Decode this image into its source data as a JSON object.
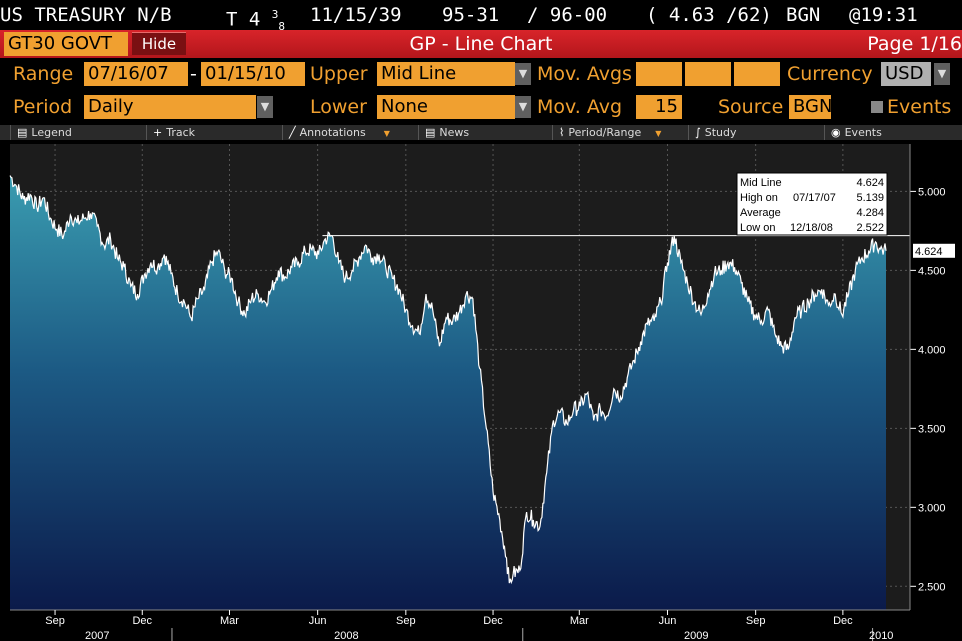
{
  "security_line": {
    "name": "US TREASURY N/B",
    "coupon": "T 4 ",
    "coupon_fraction_num": "3",
    "coupon_fraction_den": "8",
    "maturity": "11/15/39",
    "bid": "95-31",
    "ask": "/ 96-00",
    "yields": "( 4.63 /62)",
    "source": "BGN",
    "time": "@19:31"
  },
  "title_bar": {
    "ticker": "GT30 GOVT",
    "hide_label": "Hide",
    "title": "GP - Line Chart",
    "page": "Page 1/16"
  },
  "params": {
    "range_label": "Range",
    "range_start": "07/16/07",
    "range_sep": "-",
    "range_end": "01/15/10",
    "upper_label": "Upper",
    "upper_value": "Mid Line",
    "mov_avgs_label": "Mov. Avgs",
    "currency_label": "Currency",
    "currency_value": "USD",
    "period_label": "Period",
    "period_value": "Daily",
    "lower_label": "Lower",
    "lower_value": "None",
    "mov_avg_label": "Mov. Avg",
    "mov_avg_value": "15",
    "source_label": "Source",
    "source_value": "BGN",
    "events_label": "Events"
  },
  "toolbar": {
    "legend": "Legend",
    "track": "Track",
    "annotations": "Annotations",
    "news": "News",
    "period_range": "Period/Range",
    "study": "Study",
    "events": "Events"
  },
  "info_box": {
    "mid_label": "Mid Line",
    "mid_value": "4.624",
    "high_label": "High on",
    "high_date": "07/17/07",
    "high_value": "5.139",
    "avg_label": "Average",
    "avg_value": "4.284",
    "low_label": "Low on",
    "low_date": "12/18/08",
    "low_value": "2.522"
  },
  "chart_data": {
    "type": "area",
    "title": "",
    "xlabel": "",
    "ylabel": "",
    "ylim": [
      2.35,
      5.3
    ],
    "yticks": [
      2.5,
      3.0,
      3.5,
      4.0,
      4.5,
      5.0
    ],
    "ytick_labels": [
      "2.500",
      "3.000",
      "3.500",
      "4.000",
      "4.500",
      "5.000"
    ],
    "last_value_label": "4.624",
    "month_ticks": [
      {
        "date": "2007-09-01",
        "label": "Sep"
      },
      {
        "date": "2007-12-01",
        "label": "Dec"
      },
      {
        "date": "2008-03-01",
        "label": "Mar"
      },
      {
        "date": "2008-06-01",
        "label": "Jun"
      },
      {
        "date": "2008-09-01",
        "label": "Sep"
      },
      {
        "date": "2008-12-01",
        "label": "Dec"
      },
      {
        "date": "2009-03-01",
        "label": "Mar"
      },
      {
        "date": "2009-06-01",
        "label": "Jun"
      },
      {
        "date": "2009-09-01",
        "label": "Sep"
      },
      {
        "date": "2009-12-01",
        "label": "Dec"
      }
    ],
    "year_labels": [
      {
        "date": "2007-10-15",
        "label": "2007"
      },
      {
        "date": "2008-07-01",
        "label": "2008"
      },
      {
        "date": "2009-07-01",
        "label": "2009"
      },
      {
        "date": "2010-01-10",
        "label": "2010"
      }
    ],
    "x_start": "2007-07-16",
    "x_end": "2010-01-15",
    "series": [
      {
        "points": [
          [
            "2007-07-16",
            5.1
          ],
          [
            "2007-07-23",
            5.03
          ],
          [
            "2007-07-30",
            4.95
          ],
          [
            "2007-08-06",
            4.98
          ],
          [
            "2007-08-13",
            4.9
          ],
          [
            "2007-08-20",
            4.96
          ],
          [
            "2007-08-27",
            4.83
          ],
          [
            "2007-09-03",
            4.76
          ],
          [
            "2007-09-10",
            4.72
          ],
          [
            "2007-09-17",
            4.85
          ],
          [
            "2007-09-24",
            4.8
          ],
          [
            "2007-10-01",
            4.83
          ],
          [
            "2007-10-08",
            4.86
          ],
          [
            "2007-10-15",
            4.78
          ],
          [
            "2007-10-22",
            4.66
          ],
          [
            "2007-10-29",
            4.7
          ],
          [
            "2007-11-05",
            4.58
          ],
          [
            "2007-11-12",
            4.52
          ],
          [
            "2007-11-19",
            4.4
          ],
          [
            "2007-11-26",
            4.35
          ],
          [
            "2007-12-03",
            4.47
          ],
          [
            "2007-12-10",
            4.55
          ],
          [
            "2007-12-17",
            4.52
          ],
          [
            "2007-12-24",
            4.6
          ],
          [
            "2007-12-31",
            4.48
          ],
          [
            "2008-01-07",
            4.35
          ],
          [
            "2008-01-14",
            4.3
          ],
          [
            "2008-01-21",
            4.2
          ],
          [
            "2008-01-28",
            4.32
          ],
          [
            "2008-02-04",
            4.38
          ],
          [
            "2008-02-11",
            4.55
          ],
          [
            "2008-02-18",
            4.62
          ],
          [
            "2008-02-25",
            4.5
          ],
          [
            "2008-03-03",
            4.45
          ],
          [
            "2008-03-10",
            4.3
          ],
          [
            "2008-03-17",
            4.22
          ],
          [
            "2008-03-24",
            4.32
          ],
          [
            "2008-03-31",
            4.35
          ],
          [
            "2008-04-07",
            4.3
          ],
          [
            "2008-04-14",
            4.38
          ],
          [
            "2008-04-21",
            4.5
          ],
          [
            "2008-04-28",
            4.46
          ],
          [
            "2008-05-05",
            4.52
          ],
          [
            "2008-05-12",
            4.55
          ],
          [
            "2008-05-19",
            4.62
          ],
          [
            "2008-05-26",
            4.63
          ],
          [
            "2008-06-02",
            4.6
          ],
          [
            "2008-06-09",
            4.7
          ],
          [
            "2008-06-16",
            4.72
          ],
          [
            "2008-06-23",
            4.55
          ],
          [
            "2008-06-30",
            4.45
          ],
          [
            "2008-07-07",
            4.5
          ],
          [
            "2008-07-14",
            4.58
          ],
          [
            "2008-07-21",
            4.66
          ],
          [
            "2008-07-28",
            4.58
          ],
          [
            "2008-08-04",
            4.6
          ],
          [
            "2008-08-11",
            4.52
          ],
          [
            "2008-08-18",
            4.45
          ],
          [
            "2008-08-25",
            4.38
          ],
          [
            "2008-09-01",
            4.25
          ],
          [
            "2008-09-08",
            4.15
          ],
          [
            "2008-09-15",
            4.1
          ],
          [
            "2008-09-22",
            4.35
          ],
          [
            "2008-09-29",
            4.25
          ],
          [
            "2008-10-06",
            4.02
          ],
          [
            "2008-10-13",
            4.2
          ],
          [
            "2008-10-20",
            4.18
          ],
          [
            "2008-10-27",
            4.24
          ],
          [
            "2008-11-03",
            4.35
          ],
          [
            "2008-11-10",
            4.32
          ],
          [
            "2008-11-17",
            3.88
          ],
          [
            "2008-11-24",
            3.5
          ],
          [
            "2008-12-01",
            3.1
          ],
          [
            "2008-12-08",
            2.92
          ],
          [
            "2008-12-15",
            2.68
          ],
          [
            "2008-12-18",
            2.52
          ],
          [
            "2008-12-22",
            2.58
          ],
          [
            "2008-12-29",
            2.6
          ],
          [
            "2009-01-05",
            2.97
          ],
          [
            "2009-01-12",
            2.92
          ],
          [
            "2009-01-19",
            2.88
          ],
          [
            "2009-01-26",
            3.22
          ],
          [
            "2009-02-02",
            3.55
          ],
          [
            "2009-02-09",
            3.6
          ],
          [
            "2009-02-16",
            3.53
          ],
          [
            "2009-02-23",
            3.62
          ],
          [
            "2009-03-02",
            3.64
          ],
          [
            "2009-03-09",
            3.72
          ],
          [
            "2009-03-16",
            3.55
          ],
          [
            "2009-03-23",
            3.62
          ],
          [
            "2009-03-30",
            3.58
          ],
          [
            "2009-04-06",
            3.75
          ],
          [
            "2009-04-13",
            3.7
          ],
          [
            "2009-04-20",
            3.82
          ],
          [
            "2009-04-27",
            3.93
          ],
          [
            "2009-05-04",
            4.05
          ],
          [
            "2009-05-11",
            4.16
          ],
          [
            "2009-05-18",
            4.18
          ],
          [
            "2009-05-25",
            4.3
          ],
          [
            "2009-06-01",
            4.55
          ],
          [
            "2009-06-08",
            4.72
          ],
          [
            "2009-06-15",
            4.55
          ],
          [
            "2009-06-22",
            4.42
          ],
          [
            "2009-06-29",
            4.3
          ],
          [
            "2009-07-06",
            4.22
          ],
          [
            "2009-07-13",
            4.35
          ],
          [
            "2009-07-20",
            4.48
          ],
          [
            "2009-07-27",
            4.5
          ],
          [
            "2009-08-03",
            4.55
          ],
          [
            "2009-08-10",
            4.52
          ],
          [
            "2009-08-17",
            4.42
          ],
          [
            "2009-08-24",
            4.3
          ],
          [
            "2009-08-31",
            4.22
          ],
          [
            "2009-09-07",
            4.18
          ],
          [
            "2009-09-14",
            4.25
          ],
          [
            "2009-09-21",
            4.1
          ],
          [
            "2009-09-28",
            4.02
          ],
          [
            "2009-10-05",
            4.0
          ],
          [
            "2009-10-12",
            4.2
          ],
          [
            "2009-10-19",
            4.25
          ],
          [
            "2009-10-26",
            4.3
          ],
          [
            "2009-11-02",
            4.35
          ],
          [
            "2009-11-09",
            4.38
          ],
          [
            "2009-11-16",
            4.28
          ],
          [
            "2009-11-23",
            4.35
          ],
          [
            "2009-11-30",
            4.22
          ],
          [
            "2009-12-07",
            4.35
          ],
          [
            "2009-12-14",
            4.5
          ],
          [
            "2009-12-21",
            4.58
          ],
          [
            "2009-12-28",
            4.62
          ],
          [
            "2010-01-04",
            4.68
          ],
          [
            "2010-01-08",
            4.64
          ],
          [
            "2010-01-15",
            4.624
          ]
        ]
      }
    ],
    "high_point": [
      "2007-07-17",
      5.139
    ],
    "low_point": [
      "2008-12-18",
      2.522
    ],
    "grid": true,
    "legend": "none"
  }
}
